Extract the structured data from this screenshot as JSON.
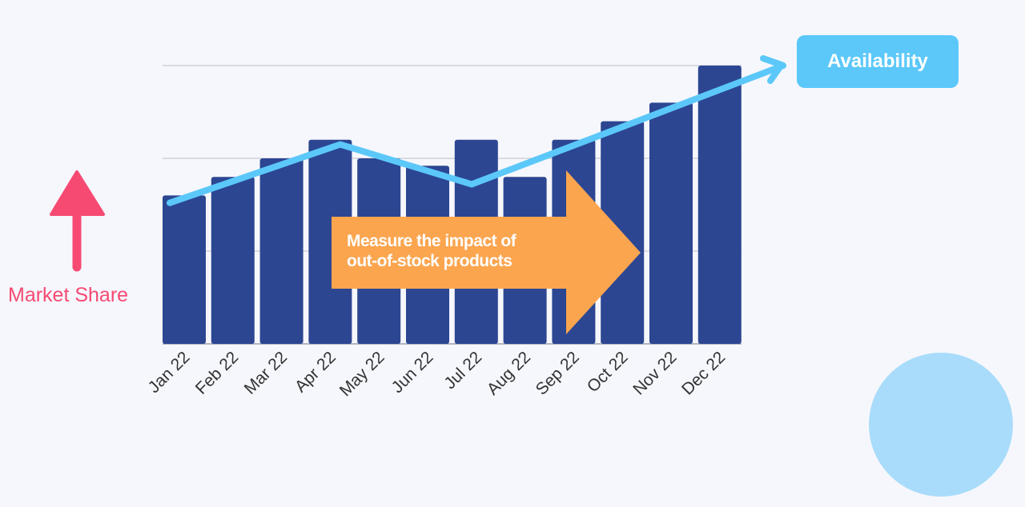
{
  "chart_data": {
    "type": "bar",
    "title": "",
    "xlabel": "",
    "ylabel": "Market Share",
    "ylim": [
      0,
      3
    ],
    "grid": true,
    "categories": [
      "Jan 22",
      "Feb 22",
      "Mar 22",
      "Apr 22",
      "May 22",
      "Jun 22",
      "Jul 22",
      "Aug 22",
      "Sep 22",
      "Oct 22",
      "Nov 22",
      "Dec 22"
    ],
    "values": [
      1.6,
      1.8,
      2.0,
      2.2,
      2.0,
      1.92,
      2.2,
      1.8,
      2.2,
      2.4,
      2.6,
      3.0
    ],
    "trend_line": {
      "name": "Availability",
      "points": [
        [
          0,
          1.52
        ],
        [
          3.5,
          2.15
        ],
        [
          6.2,
          1.72
        ],
        [
          12.6,
          3.0
        ]
      ]
    }
  },
  "labels": {
    "availability": "Availability",
    "market_share": "Market Share",
    "callout_line1": "Measure the impact of",
    "callout_line2": "out-of-stock products"
  },
  "colors": {
    "bar": "#2c4692",
    "trend": "#5bc8f9",
    "callout": "#fba54f",
    "market_share": "#f74a72",
    "circle": "#a8dcfa"
  }
}
